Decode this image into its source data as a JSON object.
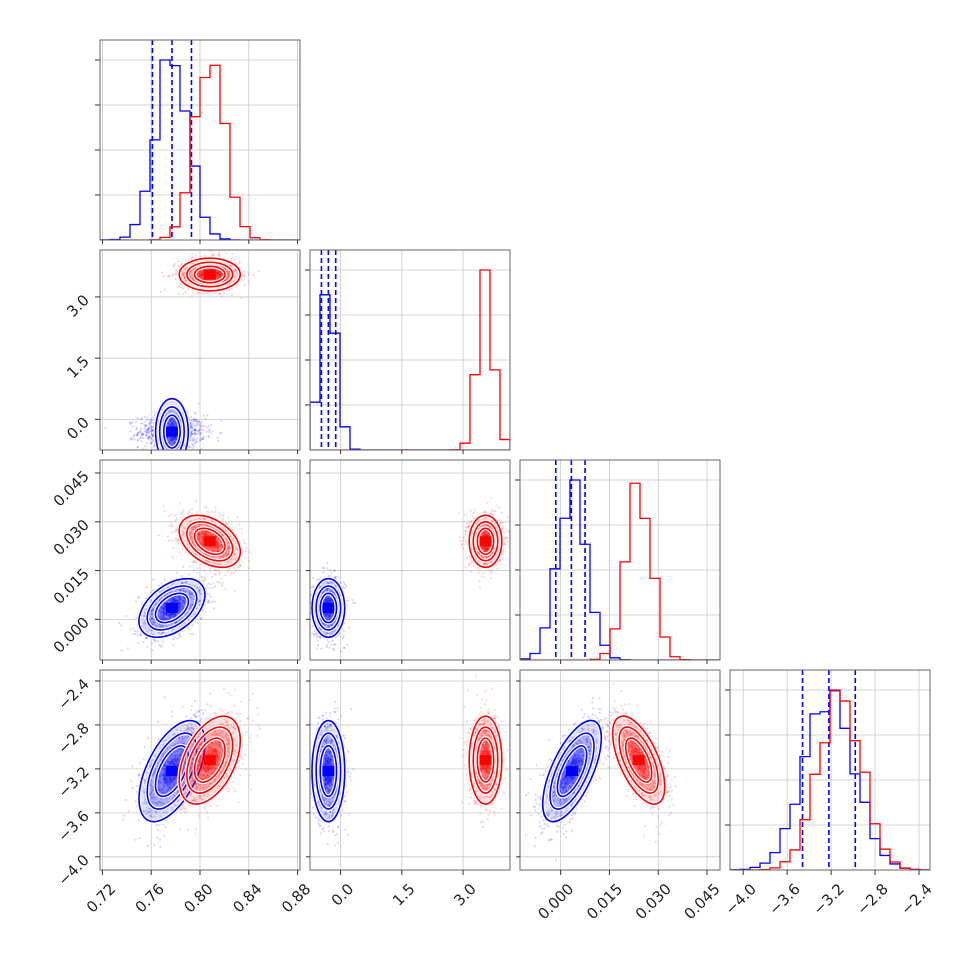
{
  "chart_data": {
    "type": "corner",
    "grid": true,
    "parameters": [
      {
        "ticks": [
          0.72,
          0.76,
          0.8,
          0.84,
          0.88
        ],
        "tick_labels": [
          "0.72",
          "0.76",
          "0.80",
          "0.84",
          "0.88"
        ],
        "range": [
          0.718,
          0.882
        ]
      },
      {
        "ticks": [
          0.0,
          1.5,
          3.0
        ],
        "tick_labels": [
          "0.0",
          "1.5",
          "3.0"
        ],
        "range": [
          -0.75,
          4.15
        ]
      },
      {
        "ticks": [
          0.0,
          0.015,
          0.03,
          0.045
        ],
        "tick_labels": [
          "0.000",
          "0.015",
          "0.030",
          "0.045"
        ],
        "range": [
          -0.0125,
          0.049
        ]
      },
      {
        "ticks": [
          -4.0,
          -3.6,
          -3.2,
          -2.8,
          -2.4
        ],
        "tick_labels": [
          "−4.0",
          "−3.6",
          "−3.2",
          "−2.8",
          "−2.4"
        ],
        "range": [
          -4.12,
          -2.3
        ]
      }
    ],
    "series": [
      {
        "color": "#0000ff",
        "means": [
          0.777,
          -0.3,
          0.0035,
          -3.22
        ],
        "sigmas": [
          0.0135,
          0.2,
          0.0045,
          0.23
        ],
        "correlations": [
          [
            0,
            2,
            0.45
          ],
          [
            0,
            3,
            0.55
          ],
          [
            2,
            3,
            0.65
          ]
        ],
        "quantile_lines": [
          [
            0.761,
            0.777,
            0.793
          ],
          [
            -0.47,
            -0.3,
            -0.12
          ],
          [
            -0.0015,
            0.0033,
            0.0075
          ],
          [
            -3.46,
            -3.22,
            -2.98
          ]
        ]
      },
      {
        "color": "#ff0000",
        "means": [
          0.808,
          3.55,
          0.024,
          -3.12
        ],
        "sigmas": [
          0.0125,
          0.2,
          0.004,
          0.2
        ],
        "correlations": [
          [
            0,
            2,
            -0.4
          ],
          [
            0,
            3,
            0.45
          ],
          [
            2,
            3,
            -0.6
          ]
        ],
        "quantile_lines": []
      }
    ]
  }
}
